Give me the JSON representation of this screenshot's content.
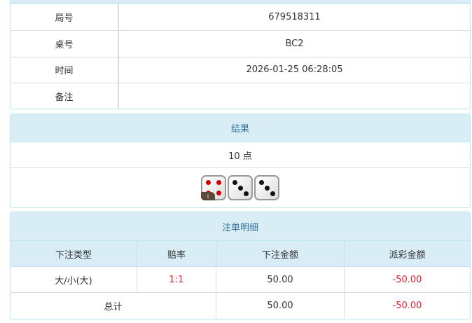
{
  "info": {
    "rows": [
      {
        "label": "局号",
        "value": "679518311"
      },
      {
        "label": "桌号",
        "value": "BC2"
      },
      {
        "label": "时间",
        "value": "2026-01-25 06:28:05"
      },
      {
        "label": "备注",
        "value": ""
      }
    ]
  },
  "result": {
    "title": "结果",
    "points": "10 点",
    "dice": [
      4,
      3,
      3
    ],
    "info_badge": "i"
  },
  "bets": {
    "title": "注单明细",
    "columns": [
      "下注类型",
      "赔率",
      "下注金额",
      "派彩金额"
    ],
    "rows": [
      {
        "type": "大/小(大)",
        "odds": "1:1",
        "amount": "50.00",
        "payout": "-50.00"
      }
    ],
    "total": {
      "label": "总计",
      "amount": "50.00",
      "payout": "-50.00"
    }
  },
  "colors": {
    "header_bg": "#d9edf7",
    "header_text": "#31708f",
    "negative": "#d9232e"
  }
}
